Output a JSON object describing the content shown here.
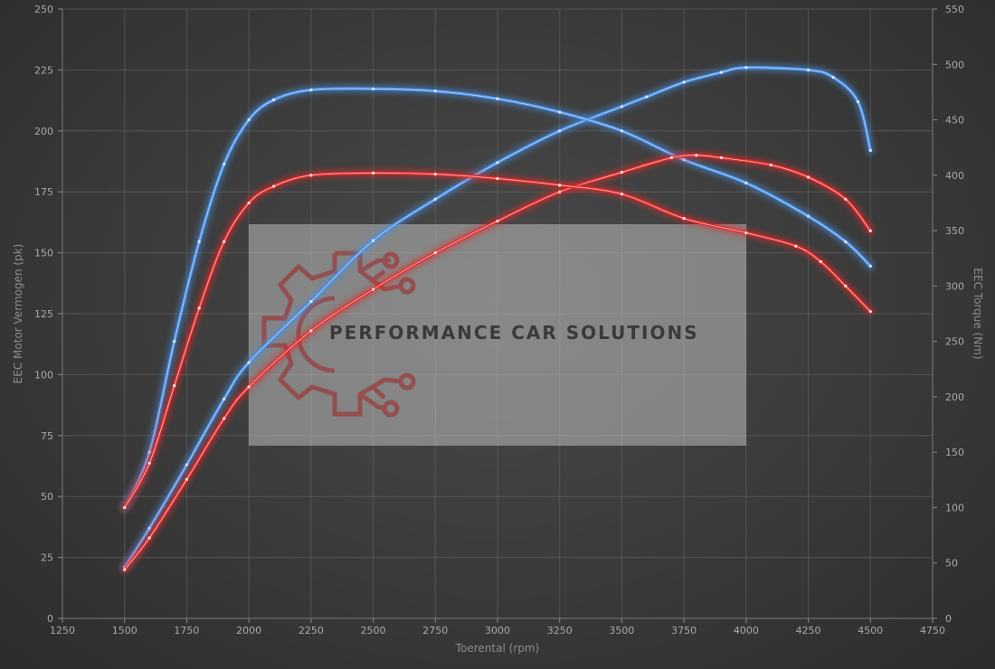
{
  "chart_data": {
    "type": "line",
    "xlabel": "Toerental (rpm)",
    "ylabel_left": "EEC Motor Vermogen (pk)",
    "ylabel_right": "EEC Torque (Nm)",
    "xlim": [
      1250,
      4750
    ],
    "ylim_left": [
      0,
      250
    ],
    "ylim_right": [
      0,
      550
    ],
    "x_ticks": [
      1250,
      1500,
      1750,
      2000,
      2250,
      2500,
      2750,
      3000,
      3250,
      3500,
      3750,
      4000,
      4250,
      4500,
      4750
    ],
    "y_left_ticks": [
      0,
      25,
      50,
      75,
      100,
      125,
      150,
      175,
      200,
      225,
      250
    ],
    "y_right_ticks": [
      0,
      50,
      100,
      150,
      200,
      250,
      300,
      350,
      400,
      450,
      500,
      550
    ],
    "grid": true,
    "series": [
      {
        "axis": "left",
        "color": "#4a8fe0",
        "points": [
          [
            1500,
            21
          ],
          [
            1600,
            37
          ],
          [
            1750,
            63
          ],
          [
            1900,
            90
          ],
          [
            2000,
            105
          ],
          [
            2250,
            130
          ],
          [
            2500,
            155
          ],
          [
            2750,
            172
          ],
          [
            3000,
            187
          ],
          [
            3250,
            200
          ],
          [
            3500,
            210
          ],
          [
            3600,
            214
          ],
          [
            3750,
            220
          ],
          [
            3900,
            224
          ],
          [
            4000,
            226
          ],
          [
            4250,
            225
          ],
          [
            4350,
            222
          ],
          [
            4450,
            212
          ],
          [
            4500,
            192
          ]
        ]
      },
      {
        "axis": "right",
        "color": "#4a8fe0",
        "points": [
          [
            1500,
            100
          ],
          [
            1600,
            150
          ],
          [
            1700,
            250
          ],
          [
            1800,
            340
          ],
          [
            1900,
            410
          ],
          [
            2000,
            450
          ],
          [
            2100,
            468
          ],
          [
            2250,
            477
          ],
          [
            2500,
            478
          ],
          [
            2750,
            476
          ],
          [
            3000,
            469
          ],
          [
            3250,
            457
          ],
          [
            3500,
            440
          ],
          [
            3750,
            414
          ],
          [
            4000,
            393
          ],
          [
            4250,
            363
          ],
          [
            4400,
            340
          ],
          [
            4500,
            318
          ]
        ]
      },
      {
        "axis": "left",
        "color": "#e02a2a",
        "points": [
          [
            1500,
            20
          ],
          [
            1600,
            33
          ],
          [
            1750,
            57
          ],
          [
            1900,
            82
          ],
          [
            2000,
            95
          ],
          [
            2250,
            118
          ],
          [
            2500,
            135
          ],
          [
            2750,
            150
          ],
          [
            3000,
            163
          ],
          [
            3250,
            175
          ],
          [
            3500,
            183
          ],
          [
            3700,
            189
          ],
          [
            3800,
            190
          ],
          [
            3900,
            189
          ],
          [
            4100,
            186
          ],
          [
            4250,
            181
          ],
          [
            4400,
            172
          ],
          [
            4500,
            159
          ]
        ]
      },
      {
        "axis": "right",
        "color": "#e02a2a",
        "points": [
          [
            1500,
            100
          ],
          [
            1600,
            140
          ],
          [
            1700,
            210
          ],
          [
            1800,
            280
          ],
          [
            1900,
            340
          ],
          [
            2000,
            375
          ],
          [
            2100,
            390
          ],
          [
            2250,
            400
          ],
          [
            2500,
            402
          ],
          [
            2750,
            401
          ],
          [
            3000,
            397
          ],
          [
            3250,
            391
          ],
          [
            3500,
            383
          ],
          [
            3750,
            361
          ],
          [
            4000,
            348
          ],
          [
            4200,
            336
          ],
          [
            4300,
            322
          ],
          [
            4400,
            300
          ],
          [
            4500,
            277
          ]
        ]
      }
    ]
  },
  "watermark": {
    "text": "PERFORMANCE CAR SOLUTIONS"
  }
}
